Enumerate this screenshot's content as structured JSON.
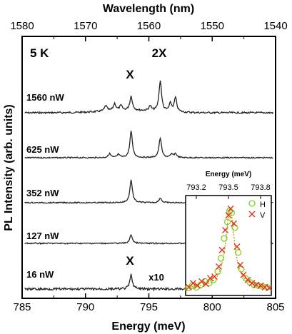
{
  "chart_data": {
    "type": "line",
    "top_axis": {
      "label": "Wavelength (nm)",
      "ticks": [
        "1580",
        "1570",
        "1560",
        "1550",
        "1540"
      ],
      "xlim": [
        1580,
        1540
      ]
    },
    "bottom_axis": {
      "label": "Energy (meV)",
      "ticks": [
        "785",
        "790",
        "795",
        "800",
        "805"
      ],
      "xlim": [
        785,
        805
      ]
    },
    "y_axis": {
      "label": "PL Intensity (arb. units)"
    },
    "temperature_label": "5 K",
    "peak_labels": {
      "X": "X",
      "2X": "2X",
      "X_low": "X"
    },
    "scale_note": "x10",
    "series": [
      {
        "name": "1560 nW",
        "peaks": [
          [
            791.6,
            0.35
          ],
          [
            792.3,
            0.45
          ],
          [
            792.8,
            0.3
          ],
          [
            793.6,
            0.9
          ],
          [
            795.1,
            0.3
          ],
          [
            795.9,
            1.95
          ],
          [
            796.7,
            0.5
          ],
          [
            797.1,
            0.9
          ]
        ]
      },
      {
        "name": "625 nW",
        "peaks": [
          [
            791.9,
            0.25
          ],
          [
            792.6,
            0.2
          ],
          [
            793.6,
            1.7
          ],
          [
            795.9,
            1.25
          ],
          [
            796.8,
            0.2
          ],
          [
            797.1,
            0.25
          ]
        ]
      },
      {
        "name": "352 nW",
        "peaks": [
          [
            793.6,
            1.45
          ],
          [
            795.9,
            0.3
          ]
        ]
      },
      {
        "name": "127 nW",
        "peaks": [
          [
            793.6,
            0.55
          ]
        ]
      },
      {
        "name": "16 nW",
        "peaks": [
          [
            793.6,
            0.9
          ]
        ]
      }
    ],
    "inset": {
      "x_label": "Energy (meV)",
      "x_ticks": [
        "793.2",
        "793.5",
        "793.8"
      ],
      "xlim": [
        793.1,
        793.9
      ],
      "legend": [
        "H",
        "V"
      ],
      "H_points": [
        [
          793.12,
          0.02
        ],
        [
          793.16,
          0.05
        ],
        [
          793.2,
          0.03
        ],
        [
          793.24,
          0.06
        ],
        [
          793.28,
          0.1
        ],
        [
          793.32,
          0.08
        ],
        [
          793.36,
          0.12
        ],
        [
          793.4,
          0.22
        ],
        [
          793.43,
          0.38
        ],
        [
          793.46,
          0.62
        ],
        [
          793.49,
          0.82
        ],
        [
          793.51,
          0.95
        ],
        [
          793.53,
          0.93
        ],
        [
          793.56,
          0.75
        ],
        [
          793.59,
          0.45
        ],
        [
          793.62,
          0.25
        ],
        [
          793.66,
          0.14
        ],
        [
          793.7,
          0.09
        ],
        [
          793.74,
          0.06
        ],
        [
          793.78,
          0.05
        ],
        [
          793.82,
          0.04
        ],
        [
          793.86,
          0.03
        ]
      ],
      "V_points": [
        [
          793.13,
          0.03
        ],
        [
          793.17,
          0.08
        ],
        [
          793.21,
          0.05
        ],
        [
          793.25,
          0.1
        ],
        [
          793.29,
          0.07
        ],
        [
          793.33,
          0.14
        ],
        [
          793.37,
          0.16
        ],
        [
          793.41,
          0.28
        ],
        [
          793.44,
          0.48
        ],
        [
          793.47,
          0.72
        ],
        [
          793.5,
          0.9
        ],
        [
          793.52,
          0.98
        ],
        [
          793.55,
          0.8
        ],
        [
          793.58,
          0.52
        ],
        [
          793.61,
          0.3
        ],
        [
          793.64,
          0.18
        ],
        [
          793.68,
          0.12
        ],
        [
          793.72,
          0.08
        ],
        [
          793.76,
          0.06
        ],
        [
          793.8,
          0.05
        ],
        [
          793.84,
          0.03
        ],
        [
          793.88,
          0.02
        ]
      ],
      "colors": {
        "H": "#7ed321",
        "V": "#e8301c",
        "fit": "#d4a017"
      }
    }
  }
}
